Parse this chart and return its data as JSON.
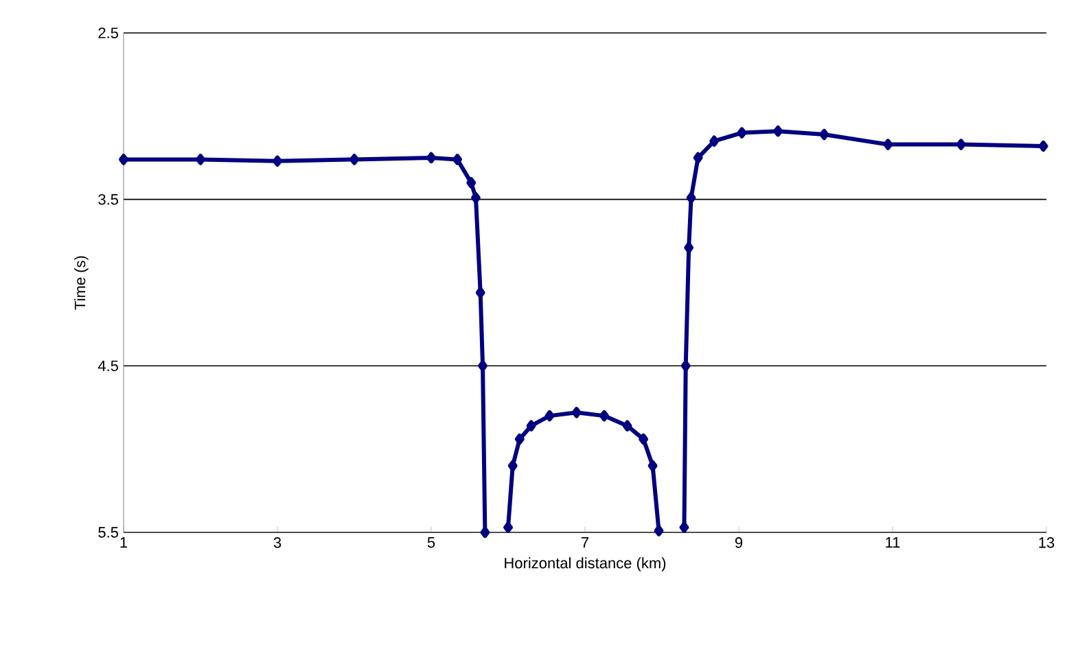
{
  "chart_data": {
    "type": "line",
    "xlabel": "Horizontal distance (km)",
    "ylabel": "Time (s)",
    "xlim": [
      1,
      13
    ],
    "ylim": [
      5.5,
      2.5
    ],
    "xticks": [
      1,
      3,
      5,
      7,
      9,
      11,
      13
    ],
    "yticks": [
      2.5,
      3.5,
      4.5,
      5.5
    ],
    "grid": "y",
    "marker": "diamond",
    "line_style": "solid",
    "series": [
      {
        "color": "#000080",
        "x": [
          1,
          2,
          3,
          4,
          5,
          5.34,
          5.52,
          5.58,
          5.64,
          5.67,
          5.7,
          5.85,
          6.0,
          6.06,
          6.15,
          6.3,
          6.54,
          6.89,
          7.25,
          7.55,
          7.76,
          7.88,
          7.96,
          8.1,
          8.29,
          8.31,
          8.35,
          8.38,
          8.47,
          8.68,
          9.04,
          9.51,
          10.11,
          10.94,
          11.89,
          12.96
        ],
        "values": [
          3.26,
          3.26,
          3.27,
          3.26,
          3.25,
          3.26,
          3.4,
          3.49,
          4.06,
          4.5,
          5.5,
          null,
          5.47,
          5.1,
          4.94,
          4.86,
          4.8,
          4.78,
          4.8,
          4.86,
          4.94,
          5.1,
          5.49,
          null,
          5.47,
          4.5,
          3.79,
          3.49,
          3.25,
          3.15,
          3.1,
          3.09,
          3.11,
          3.17,
          3.17,
          3.18
        ]
      }
    ]
  }
}
